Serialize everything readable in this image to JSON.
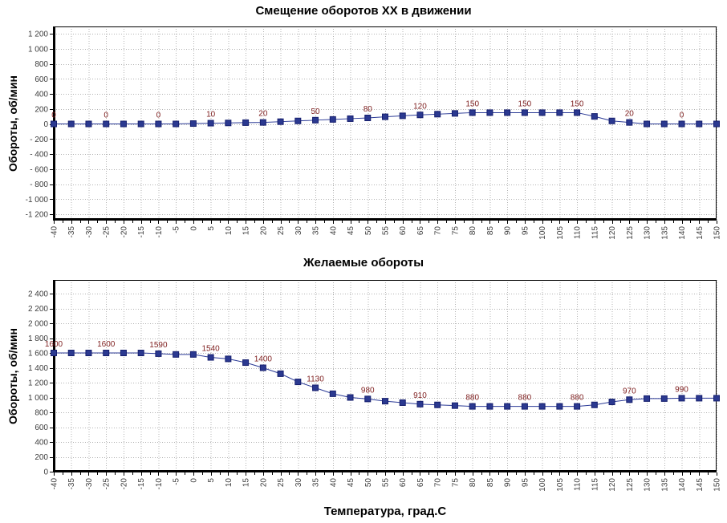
{
  "page": {
    "background": "#FFFFFF"
  },
  "x_axis_title": "Температура, град.С",
  "chart_data": [
    {
      "type": "line",
      "title": "Смещение оборотов ХХ в движении",
      "ylabel": "Обороты, об/мин",
      "xlabel": "",
      "legend_position": "none",
      "grid": true,
      "x": [
        -40,
        -35,
        -30,
        -25,
        -20,
        -15,
        -10,
        -5,
        0,
        5,
        10,
        15,
        20,
        25,
        30,
        35,
        40,
        45,
        50,
        55,
        60,
        65,
        70,
        75,
        80,
        85,
        90,
        95,
        100,
        105,
        110,
        115,
        120,
        125,
        130,
        135,
        140,
        145,
        150
      ],
      "xtick_labels": [
        "-40",
        "-35",
        "-30",
        "-25",
        "-20",
        "-15",
        "-10",
        "-5",
        "0",
        "5",
        "10",
        "15",
        "20",
        "25",
        "30",
        "35",
        "40",
        "45",
        "50",
        "55",
        "60",
        "65",
        "70",
        "75",
        "80",
        "85",
        "90",
        "95",
        "100",
        "105",
        "110",
        "115",
        "120",
        "125",
        "130",
        "135",
        "140",
        "145",
        "150"
      ],
      "series": [
        {
          "name": "Смещение оборотов ХХ",
          "values": [
            0,
            0,
            0,
            0,
            0,
            0,
            0,
            0,
            5,
            10,
            13,
            17,
            20,
            30,
            40,
            50,
            60,
            70,
            80,
            95,
            108,
            120,
            130,
            140,
            150,
            150,
            150,
            150,
            150,
            150,
            150,
            100,
            40,
            20,
            0,
            0,
            0,
            0,
            0
          ]
        }
      ],
      "point_label_step": 3,
      "point_labels": [
        "0",
        "0",
        "0",
        "10",
        "20",
        "50",
        "80",
        "120",
        "150",
        "150",
        "150",
        "20",
        "0"
      ],
      "ylim": [
        -1200,
        1200
      ],
      "ytick_step": 200,
      "ytick_labels": [
        "1 200",
        "1 000",
        "800",
        "600",
        "400",
        "200",
        "0",
        "- 200",
        "- 400",
        "- 600",
        "- 800",
        "-1 000",
        "-1 200"
      ],
      "colors": {
        "line": "#2B3A96",
        "marker_fill": "#2B3990",
        "marker_border": "#161F6E",
        "point_label": "#7E1E1E",
        "grid": "#B3B3B3",
        "axis": "#000000",
        "tick_text": "#3C3C3C"
      }
    },
    {
      "type": "line",
      "title": "Желаемые обороты",
      "ylabel": "Обороты, об/мин",
      "xlabel": "Температура, град.С",
      "legend_position": "none",
      "grid": true,
      "x": [
        -40,
        -35,
        -30,
        -25,
        -20,
        -15,
        -10,
        -5,
        0,
        5,
        10,
        15,
        20,
        25,
        30,
        35,
        40,
        45,
        50,
        55,
        60,
        65,
        70,
        75,
        80,
        85,
        90,
        95,
        100,
        105,
        110,
        115,
        120,
        125,
        130,
        135,
        140,
        145,
        150
      ],
      "xtick_labels": [
        "-40",
        "-35",
        "-30",
        "-25",
        "-20",
        "-15",
        "-10",
        "-5",
        "0",
        "5",
        "10",
        "15",
        "20",
        "25",
        "30",
        "35",
        "40",
        "45",
        "50",
        "55",
        "60",
        "65",
        "70",
        "75",
        "80",
        "85",
        "90",
        "95",
        "100",
        "105",
        "110",
        "115",
        "120",
        "125",
        "130",
        "135",
        "140",
        "145",
        "150"
      ],
      "series": [
        {
          "name": "Желаемые обороты",
          "values": [
            1600,
            1600,
            1600,
            1600,
            1600,
            1600,
            1590,
            1580,
            1580,
            1540,
            1520,
            1470,
            1400,
            1320,
            1210,
            1130,
            1050,
            1000,
            980,
            950,
            930,
            910,
            900,
            890,
            880,
            880,
            880,
            880,
            880,
            880,
            880,
            900,
            940,
            970,
            985,
            985,
            990,
            990,
            990
          ]
        }
      ],
      "point_label_step": 3,
      "point_labels": [
        "1600",
        "1600",
        "1590",
        "1540",
        "1400",
        "1130",
        "980",
        "910",
        "880",
        "880",
        "880",
        "970",
        "990"
      ],
      "ylim": [
        0,
        2400
      ],
      "ytick_step": 200,
      "ytick_labels": [
        "2 400",
        "2 200",
        "2 000",
        "1 800",
        "1 600",
        "1 400",
        "1 200",
        "1 000",
        "800",
        "600",
        "400",
        "200",
        "0"
      ],
      "colors": {
        "line": "#2B3A96",
        "marker_fill": "#2B3990",
        "marker_border": "#161F6E",
        "point_label": "#7E1E1E",
        "grid": "#B3B3B3",
        "axis": "#000000",
        "tick_text": "#3C3C3C"
      }
    }
  ]
}
